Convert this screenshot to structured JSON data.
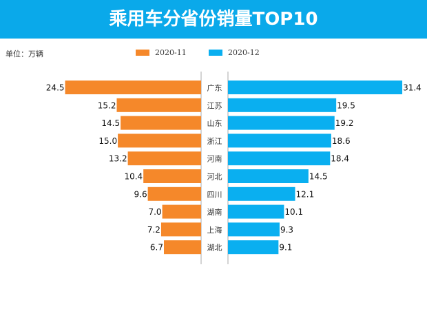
{
  "header": {
    "title": "乘用车分省份销量TOP10"
  },
  "chart_data": {
    "type": "bar",
    "orientation": "horizontal-butterfly",
    "title": "乘用车分省份销量TOP10",
    "unit_label": "单位：万辆",
    "categories": [
      "广东",
      "江苏",
      "山东",
      "浙江",
      "河南",
      "河北",
      "四川",
      "湖南",
      "上海",
      "湖北"
    ],
    "series": [
      {
        "name": "2020-11",
        "color": "#f5882a",
        "values": [
          24.5,
          15.2,
          14.5,
          15.0,
          13.2,
          10.4,
          9.6,
          7.0,
          7.2,
          6.7
        ]
      },
      {
        "name": "2020-12",
        "color": "#0aaff0",
        "values": [
          31.4,
          19.5,
          19.2,
          18.6,
          18.4,
          14.5,
          12.1,
          10.1,
          9.3,
          9.1
        ]
      }
    ],
    "legend_position": "top-center",
    "grid": false
  }
}
